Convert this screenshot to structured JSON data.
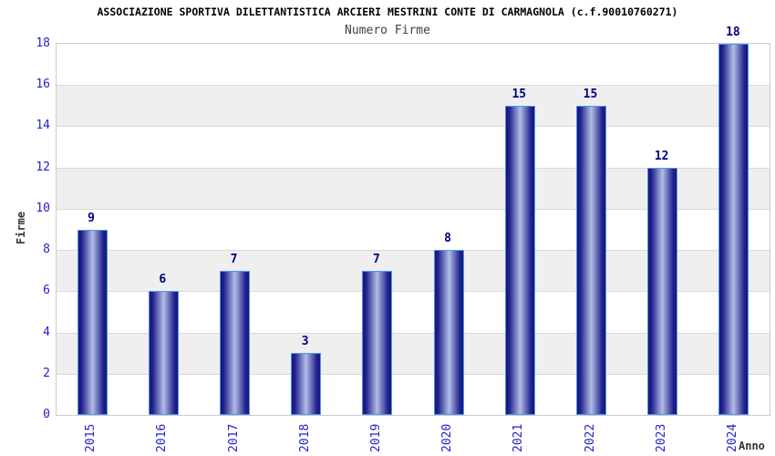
{
  "header": {
    "title": "ASSOCIAZIONE SPORTIVA DILETTANTISTICA ARCIERI MESTRINI CONTE DI CARMAGNOLA (c.f.90010760271)"
  },
  "chart_data": {
    "type": "bar",
    "title": "Numero Firme",
    "categories": [
      "2015",
      "2016",
      "2017",
      "2018",
      "2019",
      "2020",
      "2021",
      "2022",
      "2023",
      "2024"
    ],
    "values": [
      9,
      6,
      7,
      3,
      7,
      8,
      15,
      15,
      12,
      18
    ],
    "xlabel": "Anno",
    "ylabel": "Firme",
    "ylim": [
      0,
      18
    ],
    "ytick_step": 2,
    "yticks": [
      0,
      2,
      4,
      6,
      8,
      10,
      12,
      14,
      16,
      18
    ],
    "grid": "horizontal-bands",
    "legend": "none",
    "bar_value_labels": true
  },
  "colors": {
    "title": "#000000",
    "subtitle": "#404040",
    "axis_tick_label": "#2222cc",
    "bar_value_label": "#000082",
    "bar_edge": "#15157e",
    "bar_mid": "#23238e",
    "bar_highlight": "#b2bde6",
    "bar_border": "#4f97ea",
    "band": "#efefef",
    "gridline": "#d9d9d9",
    "plot_border": "#cccccc",
    "axis_title": "#333333",
    "background": "#ffffff"
  }
}
